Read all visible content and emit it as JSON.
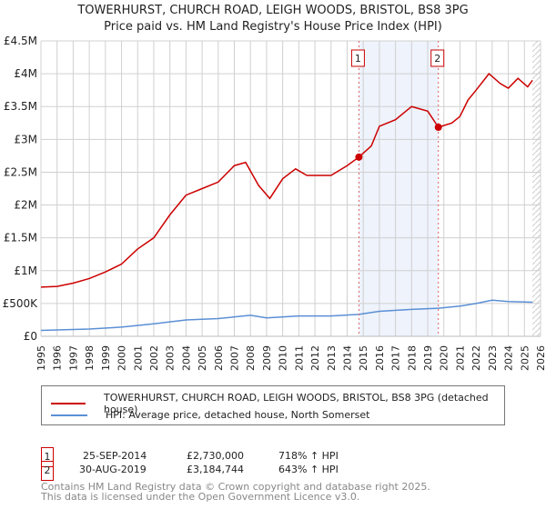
{
  "title": "TOWERHURST, CHURCH ROAD, LEIGH WOODS, BRISTOL, BS8 3PG",
  "subtitle": "Price paid vs. HM Land Registry's House Price Index (HPI)",
  "chart_data": {
    "type": "line",
    "title": "TOWERHURST, CHURCH ROAD, LEIGH WOODS, BRISTOL, BS8 3PG",
    "xlim": [
      1995,
      2026
    ],
    "ylim": [
      0,
      4500000
    ],
    "yticks": [
      {
        "v": 0,
        "label": "£0"
      },
      {
        "v": 500000,
        "label": "£500K"
      },
      {
        "v": 1000000,
        "label": "£1M"
      },
      {
        "v": 1500000,
        "label": "£1.5M"
      },
      {
        "v": 2000000,
        "label": "£2M"
      },
      {
        "v": 2500000,
        "label": "£2.5M"
      },
      {
        "v": 3000000,
        "label": "£3M"
      },
      {
        "v": 3500000,
        "label": "£3.5M"
      },
      {
        "v": 4000000,
        "label": "£4M"
      },
      {
        "v": 4500000,
        "label": "£4.5M"
      }
    ],
    "xticks": [
      "1995",
      "1996",
      "1997",
      "1998",
      "1999",
      "2000",
      "2001",
      "2002",
      "2003",
      "2004",
      "2005",
      "2006",
      "2007",
      "2008",
      "2009",
      "2010",
      "2011",
      "2012",
      "2013",
      "2014",
      "2015",
      "2016",
      "2017",
      "2018",
      "2019",
      "2020",
      "2021",
      "2022",
      "2023",
      "2024",
      "2025",
      "2026"
    ],
    "series": [
      {
        "name": "TOWERHURST, CHURCH ROAD, LEIGH WOODS, BRISTOL, BS8 3PG (detached house)",
        "color": "#cc0000",
        "x": [
          1995,
          1996,
          1997,
          1998,
          1999,
          2000,
          2001,
          2002,
          2003,
          2004,
          2005,
          2006,
          2007,
          2007.7,
          2008.5,
          2009.2,
          2010,
          2010.8,
          2011.5,
          2012,
          2013,
          2014,
          2014.73,
          2015.5,
          2016,
          2017,
          2018,
          2019,
          2019.66,
          2020.5,
          2021,
          2021.5,
          2022,
          2022.8,
          2023.5,
          2024,
          2024.6,
          2025.2,
          2025.5
        ],
        "y": [
          750000,
          760000,
          810000,
          880000,
          980000,
          1100000,
          1330000,
          1500000,
          1850000,
          2150000,
          2250000,
          2350000,
          2600000,
          2650000,
          2300000,
          2100000,
          2400000,
          2550000,
          2450000,
          2450000,
          2450000,
          2600000,
          2730000,
          2900000,
          3200000,
          3300000,
          3500000,
          3430000,
          3184744,
          3250000,
          3350000,
          3600000,
          3750000,
          4000000,
          3850000,
          3780000,
          3930000,
          3800000,
          3900000
        ]
      },
      {
        "name": "HPI: Average price, detached house, North Somerset",
        "color": "#5b8fd6",
        "x": [
          1995,
          1998,
          2000,
          2002,
          2004,
          2006,
          2008,
          2009,
          2011,
          2013,
          2014.73,
          2016,
          2018,
          2019.66,
          2021,
          2022,
          2023,
          2024,
          2025.5
        ],
        "y": [
          90000,
          110000,
          140000,
          190000,
          250000,
          270000,
          320000,
          280000,
          310000,
          310000,
          334000,
          380000,
          410000,
          428000,
          460000,
          500000,
          550000,
          530000,
          520000
        ]
      }
    ],
    "annotations": [
      {
        "label": "1",
        "x": 2014.73,
        "y": 2730000
      },
      {
        "label": "2",
        "x": 2019.66,
        "y": 3184744
      }
    ],
    "shaded_range": [
      2014.73,
      2019.66
    ],
    "forecast_from": 2025.5
  },
  "legend": [
    "TOWERHURST, CHURCH ROAD, LEIGH WOODS, BRISTOL, BS8 3PG (detached house)",
    "HPI: Average price, detached house, North Somerset"
  ],
  "transactions": [
    {
      "n": "1",
      "date": "25-SEP-2014",
      "price": "£2,730,000",
      "hpi": "718% ↑ HPI"
    },
    {
      "n": "2",
      "date": "30-AUG-2019",
      "price": "£3,184,744",
      "hpi": "643% ↑ HPI"
    }
  ],
  "footer": [
    "Contains HM Land Registry data © Crown copyright and database right 2025.",
    "This data is licensed under the Open Government Licence v3.0."
  ]
}
